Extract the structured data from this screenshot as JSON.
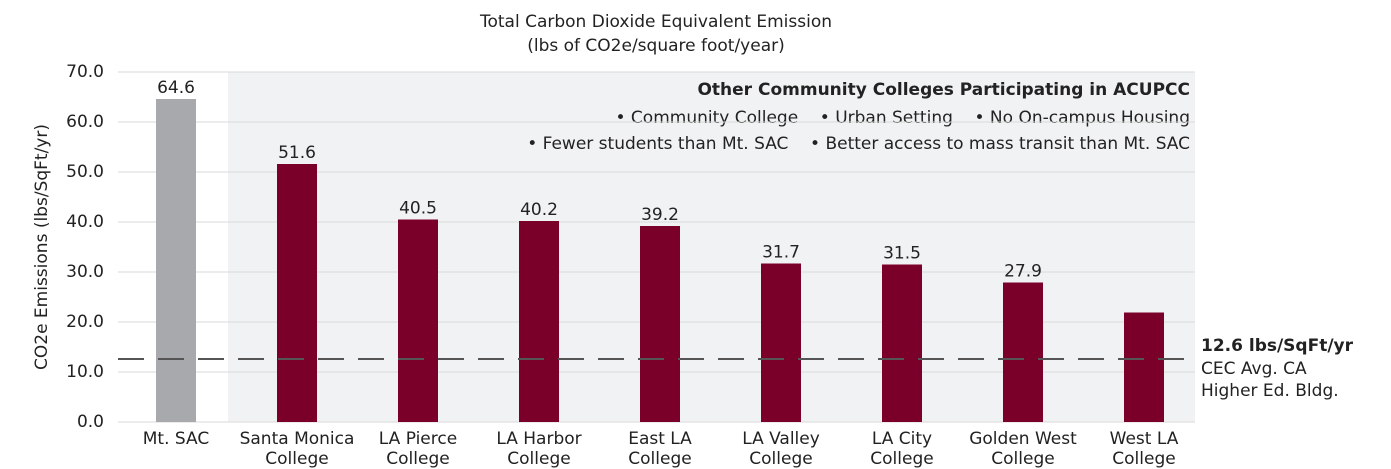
{
  "chart_data": {
    "type": "bar",
    "title": [
      "Total Carbon Dioxide Equivalent Emission",
      "(lbs of CO2e/square foot/year)"
    ],
    "y_label": "CO2e Emissions (lbs/SqFt/yr)",
    "categories": [
      [
        "Mt. SAC"
      ],
      [
        "Santa Monica",
        "College"
      ],
      [
        "LA Pierce",
        "College"
      ],
      [
        "LA Harbor",
        "College"
      ],
      [
        "East LA",
        "College"
      ],
      [
        "LA Valley",
        "College"
      ],
      [
        "LA City",
        "College"
      ],
      [
        "Golden West",
        "College"
      ],
      [
        "West LA",
        "College"
      ]
    ],
    "values": [
      64.6,
      51.6,
      40.5,
      40.2,
      39.2,
      31.7,
      31.5,
      27.9,
      21.9
    ],
    "value_labels": [
      "64.6",
      "51.6",
      "40.5",
      "40.2",
      "39.2",
      "31.7",
      "31.5",
      "27.9",
      null
    ],
    "colors": [
      "#a7a9ac",
      "#7b0029",
      "#7b0029",
      "#7b0029",
      "#7b0029",
      "#7b0029",
      "#7b0029",
      "#7b0029",
      "#7b0029"
    ],
    "ylim": [
      0,
      70
    ],
    "yticks": [
      {
        "value": 0,
        "label": "0.0"
      },
      {
        "value": 10,
        "label": "10.0"
      },
      {
        "value": 20,
        "label": "20.0"
      },
      {
        "value": 30,
        "label": "30.0"
      },
      {
        "value": 40,
        "label": "40.0"
      },
      {
        "value": 50,
        "label": "50.0"
      },
      {
        "value": 60,
        "label": "60.0"
      },
      {
        "value": 70,
        "label": "70.0"
      }
    ],
    "grid": true,
    "reference_line": {
      "value": 12.6,
      "label": "12.6 lbs/SqFt/yr",
      "lines": [
        "CEC Avg. CA",
        "Higher Ed. Bldg."
      ]
    },
    "annotation": {
      "title": "Other Community Colleges Participating in ACUPCC",
      "lines": [
        "• Community College    • Urban Setting    • No On-campus Housing",
        "• Fewer students than Mt. SAC    • Better access to mass transit than Mt. SAC"
      ]
    }
  }
}
